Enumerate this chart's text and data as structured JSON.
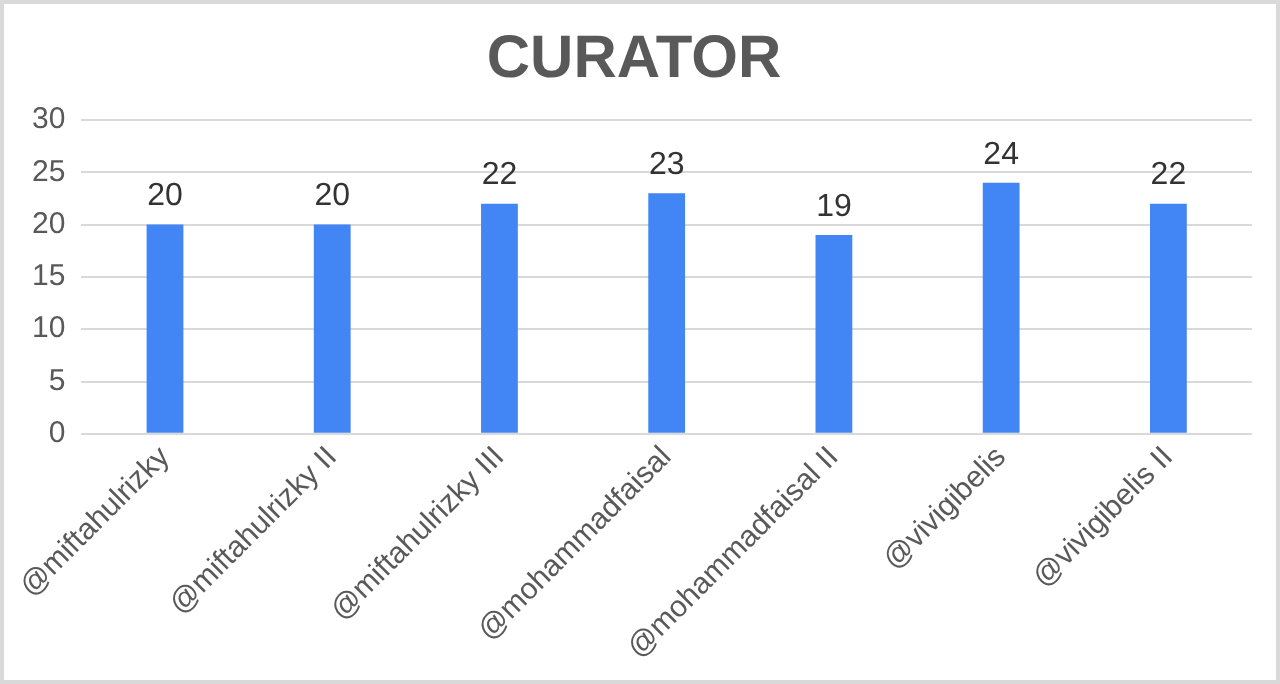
{
  "chart_data": {
    "type": "bar",
    "title": "CURATOR",
    "categories": [
      "@miftahulrizky",
      "@miftahulrizky II",
      "@miftahulrizky III",
      "@mohammadfaisal",
      "@mohammadfaisal II",
      "@vivigibelis",
      "@vivigibelis II"
    ],
    "values": [
      20,
      20,
      22,
      23,
      19,
      24,
      22
    ],
    "color": "#4285f4",
    "ylim": [
      0,
      30
    ],
    "yticks": [
      0,
      5,
      10,
      15,
      20,
      25,
      30
    ],
    "grid": "y",
    "data_labels": true,
    "legend": false
  }
}
